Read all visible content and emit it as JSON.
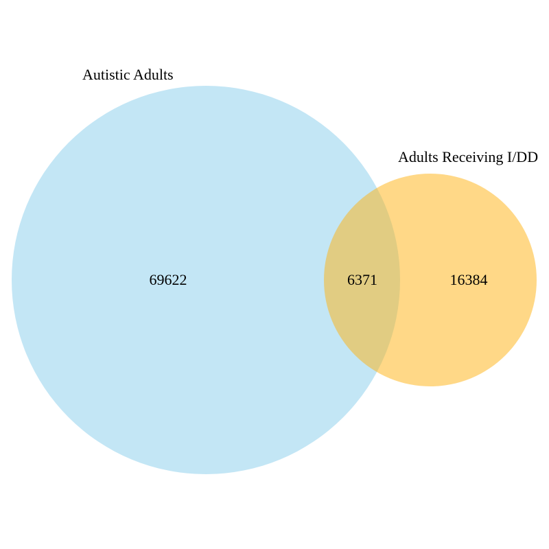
{
  "venn": {
    "sets": [
      {
        "label": "Autistic Adults",
        "color": "#87CEEB"
      },
      {
        "label": "Adults Receiving I/DD",
        "color": "#FFB20F"
      }
    ],
    "regions": {
      "only_a": 69622,
      "a_and_b": 6371,
      "only_b": 16384
    }
  }
}
